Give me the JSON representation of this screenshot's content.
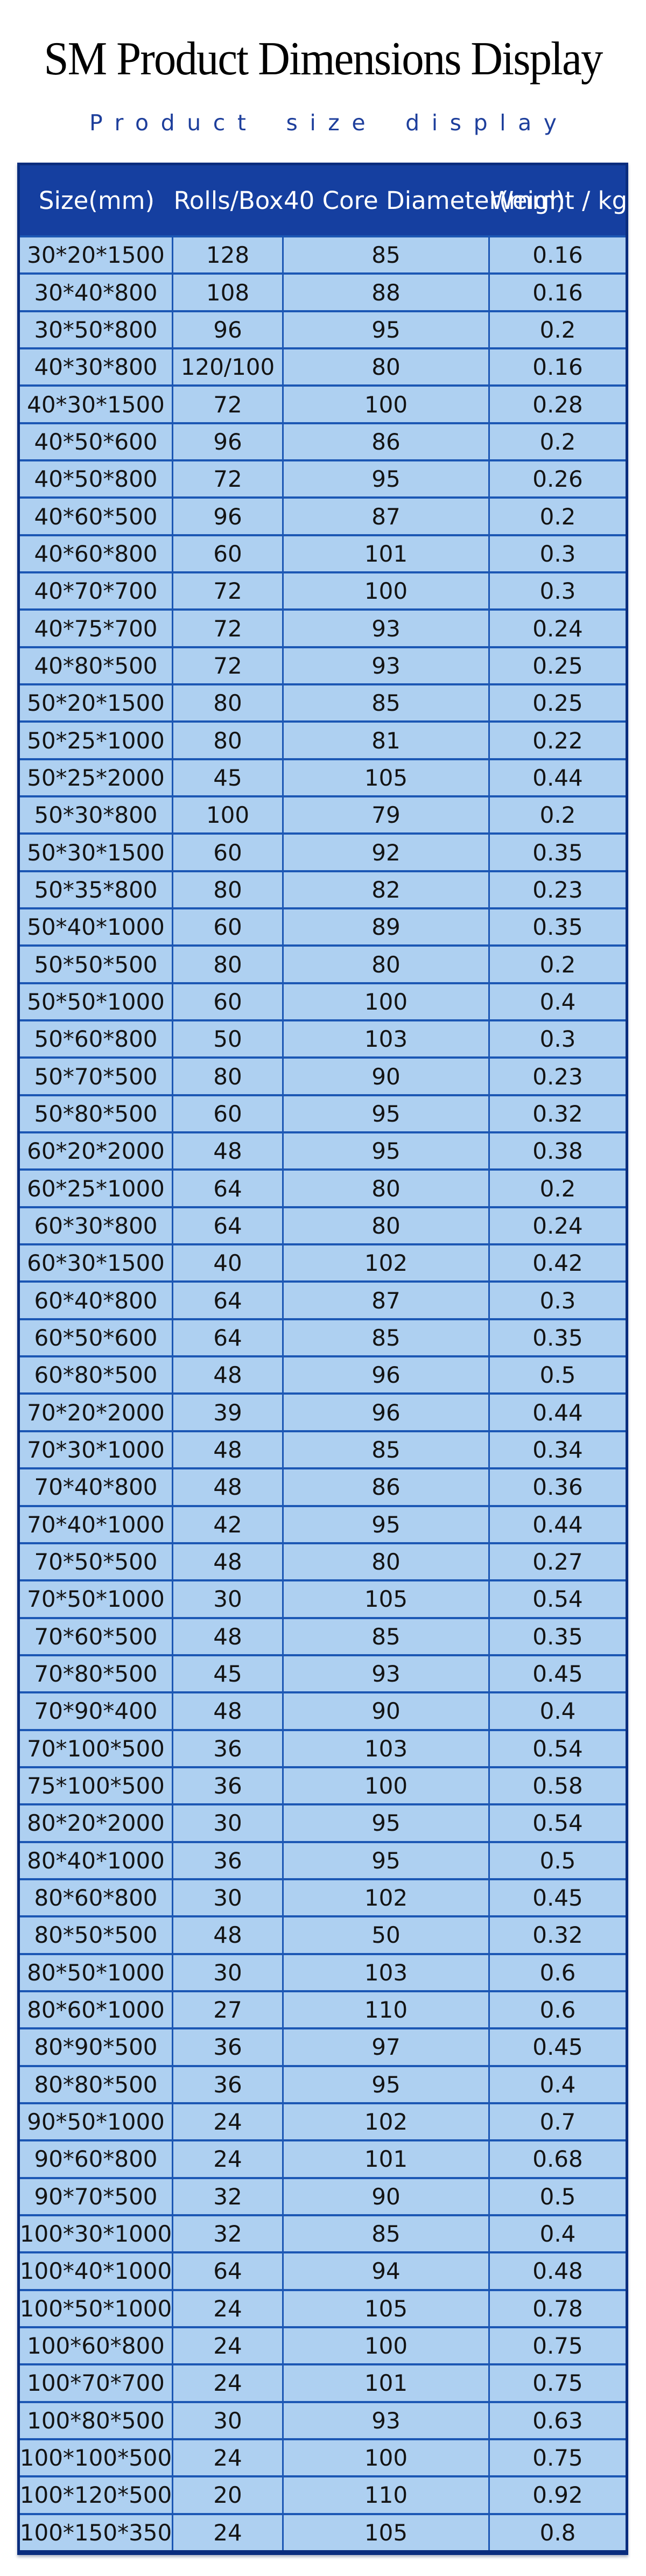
{
  "page": {
    "title": "SM Product Dimensions Display",
    "subtitle": "Product size display"
  },
  "colors": {
    "title_color": "#000000",
    "subtitle_color": "#1e3f9c",
    "header_bg": "#153fa0",
    "row_bg": "#aed0f1",
    "grid_line": "#1c57b4",
    "frame": "#0a2d7e",
    "header_text": "#ffffff",
    "cell_text": "#141414"
  },
  "table": {
    "columns": [
      "Size(mm)",
      "Rolls/Box",
      "40 Core Diameter(mm)",
      "Weight / kg"
    ],
    "rows": [
      [
        "30*20*1500",
        "128",
        "85",
        "0.16"
      ],
      [
        "30*40*800",
        "108",
        "88",
        "0.16"
      ],
      [
        "30*50*800",
        "96",
        "95",
        "0.2"
      ],
      [
        "40*30*800",
        "120/100",
        "80",
        "0.16"
      ],
      [
        "40*30*1500",
        "72",
        "100",
        "0.28"
      ],
      [
        "40*50*600",
        "96",
        "86",
        "0.2"
      ],
      [
        "40*50*800",
        "72",
        "95",
        "0.26"
      ],
      [
        "40*60*500",
        "96",
        "87",
        "0.2"
      ],
      [
        "40*60*800",
        "60",
        "101",
        "0.3"
      ],
      [
        "40*70*700",
        "72",
        "100",
        "0.3"
      ],
      [
        "40*75*700",
        "72",
        "93",
        "0.24"
      ],
      [
        "40*80*500",
        "72",
        "93",
        "0.25"
      ],
      [
        "50*20*1500",
        "80",
        "85",
        "0.25"
      ],
      [
        "50*25*1000",
        "80",
        "81",
        "0.22"
      ],
      [
        "50*25*2000",
        "45",
        "105",
        "0.44"
      ],
      [
        "50*30*800",
        "100",
        "79",
        "0.2"
      ],
      [
        "50*30*1500",
        "60",
        "92",
        "0.35"
      ],
      [
        "50*35*800",
        "80",
        "82",
        "0.23"
      ],
      [
        "50*40*1000",
        "60",
        "89",
        "0.35"
      ],
      [
        "50*50*500",
        "80",
        "80",
        "0.2"
      ],
      [
        "50*50*1000",
        "60",
        "100",
        "0.4"
      ],
      [
        "50*60*800",
        "50",
        "103",
        "0.3"
      ],
      [
        "50*70*500",
        "80",
        "90",
        "0.23"
      ],
      [
        "50*80*500",
        "60",
        "95",
        "0.32"
      ],
      [
        "60*20*2000",
        "48",
        "95",
        "0.38"
      ],
      [
        "60*25*1000",
        "64",
        "80",
        "0.2"
      ],
      [
        "60*30*800",
        "64",
        "80",
        "0.24"
      ],
      [
        "60*30*1500",
        "40",
        "102",
        "0.42"
      ],
      [
        "60*40*800",
        "64",
        "87",
        "0.3"
      ],
      [
        "60*50*600",
        "64",
        "85",
        "0.35"
      ],
      [
        "60*80*500",
        "48",
        "96",
        "0.5"
      ],
      [
        "70*20*2000",
        "39",
        "96",
        "0.44"
      ],
      [
        "70*30*1000",
        "48",
        "85",
        "0.34"
      ],
      [
        "70*40*800",
        "48",
        "86",
        "0.36"
      ],
      [
        "70*40*1000",
        "42",
        "95",
        "0.44"
      ],
      [
        "70*50*500",
        "48",
        "80",
        "0.27"
      ],
      [
        "70*50*1000",
        "30",
        "105",
        "0.54"
      ],
      [
        "70*60*500",
        "48",
        "85",
        "0.35"
      ],
      [
        "70*80*500",
        "45",
        "93",
        "0.45"
      ],
      [
        "70*90*400",
        "48",
        "90",
        "0.4"
      ],
      [
        "70*100*500",
        "36",
        "103",
        "0.54"
      ],
      [
        "75*100*500",
        "36",
        "100",
        "0.58"
      ],
      [
        "80*20*2000",
        "30",
        "95",
        "0.54"
      ],
      [
        "80*40*1000",
        "36",
        "95",
        "0.5"
      ],
      [
        "80*60*800",
        "30",
        "102",
        "0.45"
      ],
      [
        "80*50*500",
        "48",
        "50",
        "0.32"
      ],
      [
        "80*50*1000",
        "30",
        "103",
        "0.6"
      ],
      [
        "80*60*1000",
        "27",
        "110",
        "0.6"
      ],
      [
        "80*90*500",
        "36",
        "97",
        "0.45"
      ],
      [
        "80*80*500",
        "36",
        "95",
        "0.4"
      ],
      [
        "90*50*1000",
        "24",
        "102",
        "0.7"
      ],
      [
        "90*60*800",
        "24",
        "101",
        "0.68"
      ],
      [
        "90*70*500",
        "32",
        "90",
        "0.5"
      ],
      [
        "100*30*1000",
        "32",
        "85",
        "0.4"
      ],
      [
        "100*40*1000",
        "64",
        "94",
        "0.48"
      ],
      [
        "100*50*1000",
        "24",
        "105",
        "0.78"
      ],
      [
        "100*60*800",
        "24",
        "100",
        "0.75"
      ],
      [
        "100*70*700",
        "24",
        "101",
        "0.75"
      ],
      [
        "100*80*500",
        "30",
        "93",
        "0.63"
      ],
      [
        "100*100*500",
        "24",
        "100",
        "0.75"
      ],
      [
        "100*120*500",
        "20",
        "110",
        "0.92"
      ],
      [
        "100*150*350",
        "24",
        "105",
        "0.8"
      ]
    ]
  }
}
